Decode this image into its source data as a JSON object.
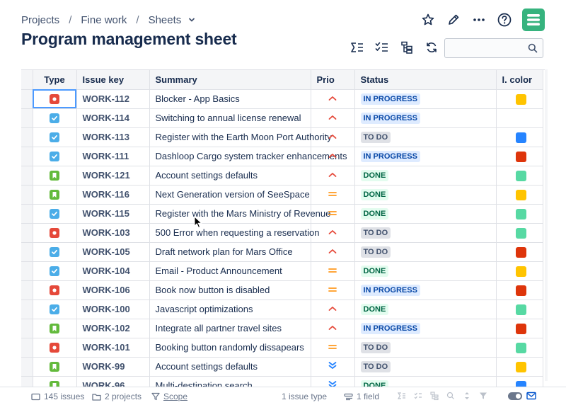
{
  "breadcrumb": {
    "project_root": "Projects",
    "project": "Fine work",
    "section": "Sheets"
  },
  "page_title": "Program management sheet",
  "search": {
    "value": "",
    "placeholder": ""
  },
  "columns": {
    "type": "Type",
    "key": "Issue key",
    "summary": "Summary",
    "prio": "Prio",
    "status": "Status",
    "color": "I. color"
  },
  "colors": {
    "accent": "#36b37e",
    "bug": "#e5493a",
    "task": "#4bade8",
    "story": "#63ba3c",
    "prio_high": "#e5493a",
    "prio_medium": "#ff991f",
    "prio_lowest": "#2684ff",
    "swatch_yellow": "#ffc400",
    "swatch_blue": "#2684ff",
    "swatch_red": "#de350b",
    "swatch_green": "#57d9a3"
  },
  "rows": [
    {
      "type": "bug",
      "key": "WORK-112",
      "summary": "Blocker - App Basics",
      "prio": "high",
      "status": "IN PROGRESS",
      "color": "swatch_yellow"
    },
    {
      "type": "task",
      "key": "WORK-114",
      "summary": "Switching to annual license renewal",
      "prio": "high",
      "status": "IN PROGRESS",
      "color": ""
    },
    {
      "type": "task",
      "key": "WORK-113",
      "summary": "Register with the Earth Moon Port Authority",
      "prio": "high",
      "status": "TO DO",
      "color": "swatch_blue"
    },
    {
      "type": "task",
      "key": "WORK-111",
      "summary": "Dashloop Cargo system tracker enhancements",
      "prio": "high",
      "status": "IN PROGRESS",
      "color": "swatch_red"
    },
    {
      "type": "story",
      "key": "WORK-121",
      "summary": "Account settings defaults",
      "prio": "high",
      "status": "DONE",
      "color": "swatch_green"
    },
    {
      "type": "story",
      "key": "WORK-116",
      "summary": "Next Generation version of SeeSpace",
      "prio": "medium",
      "status": "DONE",
      "color": "swatch_yellow"
    },
    {
      "type": "task",
      "key": "WORK-115",
      "summary": "Register with the Mars Ministry of Revenue",
      "prio": "medium",
      "status": "DONE",
      "color": "swatch_green"
    },
    {
      "type": "bug",
      "key": "WORK-103",
      "summary": "500 Error when requesting a reservation",
      "prio": "high",
      "status": "TO DO",
      "color": "swatch_green"
    },
    {
      "type": "task",
      "key": "WORK-105",
      "summary": "Draft network plan for Mars Office",
      "prio": "high",
      "status": "TO DO",
      "color": "swatch_red"
    },
    {
      "type": "task",
      "key": "WORK-104",
      "summary": "Email - Product Announcement",
      "prio": "medium",
      "status": "DONE",
      "color": "swatch_yellow"
    },
    {
      "type": "bug",
      "key": "WORK-106",
      "summary": "Book now button is disabled",
      "prio": "medium",
      "status": "IN PROGRESS",
      "color": "swatch_red"
    },
    {
      "type": "task",
      "key": "WORK-100",
      "summary": "Javascript optimizations",
      "prio": "high",
      "status": "DONE",
      "color": "swatch_green"
    },
    {
      "type": "story",
      "key": "WORK-102",
      "summary": "Integrate all partner travel sites",
      "prio": "high",
      "status": "IN PROGRESS",
      "color": "swatch_red"
    },
    {
      "type": "bug",
      "key": "WORK-101",
      "summary": "Booking button randomly dissapears",
      "prio": "medium",
      "status": "TO DO",
      "color": "swatch_green"
    },
    {
      "type": "story",
      "key": "WORK-99",
      "summary": "Account settings defaults",
      "prio": "lowest",
      "status": "TO DO",
      "color": "swatch_yellow"
    },
    {
      "type": "story",
      "key": "WORK-96",
      "summary": "Multi-destination search",
      "prio": "lowest",
      "status": "DONE",
      "color": "swatch_blue"
    }
  ],
  "footer": {
    "issues": "145 issues",
    "projects": "2 projects",
    "scope": "Scope",
    "issue_type": "1 issue type",
    "field": "1 field"
  }
}
